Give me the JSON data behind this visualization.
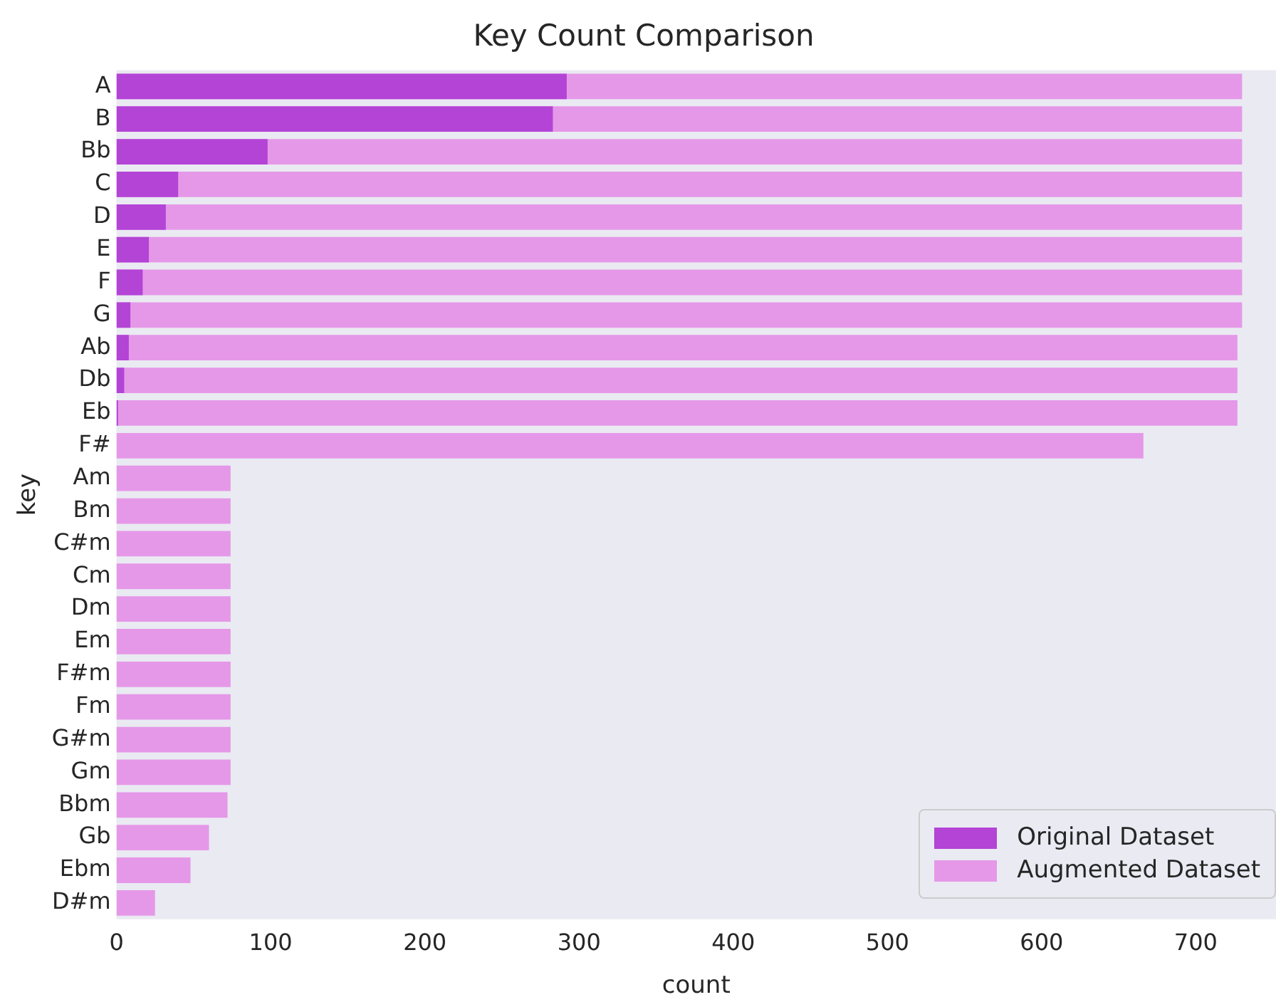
{
  "chart_data": {
    "type": "bar",
    "orientation": "horizontal",
    "title": "Key Count Comparison",
    "xlabel": "count",
    "ylabel": "key",
    "categories": [
      "A",
      "B",
      "Bb",
      "C",
      "D",
      "E",
      "F",
      "G",
      "Ab",
      "Db",
      "Eb",
      "F#",
      "Am",
      "Bm",
      "C#m",
      "Cm",
      "Dm",
      "Em",
      "F#m",
      "Fm",
      "G#m",
      "Gm",
      "Bbm",
      "Gb",
      "Ebm",
      "D#m"
    ],
    "series": [
      {
        "name": "Original Dataset",
        "color": "#b344d6",
        "values": [
          292,
          283,
          98,
          40,
          32,
          21,
          17,
          9,
          8,
          5,
          1,
          0,
          0,
          0,
          0,
          0,
          0,
          0,
          0,
          0,
          0,
          0,
          0,
          0,
          0,
          0
        ]
      },
      {
        "name": "Augmented Dataset",
        "color": "#e598e8",
        "values": [
          730,
          730,
          730,
          730,
          730,
          730,
          730,
          730,
          727,
          727,
          727,
          666,
          74,
          74,
          74,
          74,
          74,
          74,
          74,
          74,
          74,
          74,
          72,
          60,
          48,
          25
        ]
      }
    ],
    "xlim": [
      0,
      752
    ],
    "xticks": [
      0,
      100,
      200,
      300,
      400,
      500,
      600,
      700
    ],
    "grid": false,
    "legend": "bottom right"
  }
}
